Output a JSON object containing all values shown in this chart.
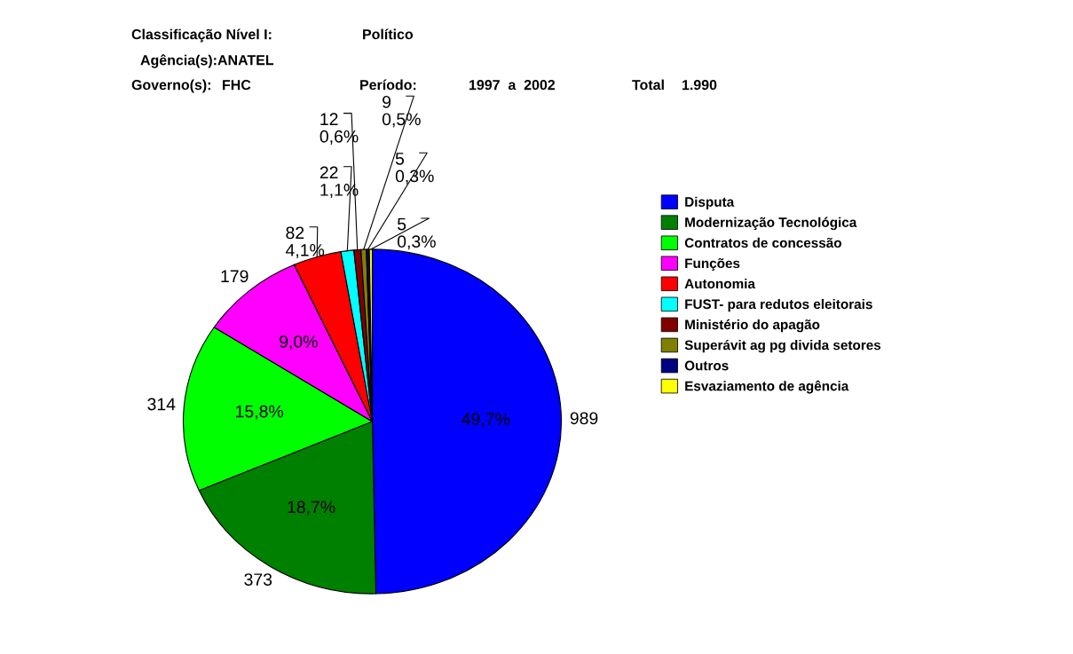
{
  "chart_data": {
    "type": "pie",
    "annotations": [
      "Classificação Nível I:",
      "Político",
      "Agência(s):",
      "ANATEL",
      "Governo(s):",
      "FHC",
      "Período:",
      "1997  a  2002",
      "Total",
      "1.990",
      {
        "text": "49,7%",
        "x": "Disputa"
      },
      {
        "text": "18,7%",
        "x": "Modernização Tecnológica"
      },
      {
        "text": "15,8%",
        "x": "Contratos de concessão"
      },
      {
        "text": "9,0%",
        "x": "Funções"
      },
      {
        "text": "4,1%",
        "x": "Autonomia"
      },
      {
        "text": "1,1%",
        "x": "FUST- para redutos eleitorais"
      },
      {
        "text": "0,6%",
        "x": "Ministério do apagão"
      },
      {
        "text": "0,5%",
        "x": "Superávit ag pg divida setores"
      },
      {
        "text": "0,3%",
        "x": "Outros"
      },
      {
        "text": "0,3%",
        "x": "Esvaziamento de agência"
      }
    ],
    "categories": [
      "Disputa",
      "Modernização Tecnológica",
      "Contratos de concessão",
      "Funções",
      "Autonomia",
      "FUST- para redutos eleitorais",
      "Ministério do apagão",
      "Superávit ag pg divida setores",
      "Outros",
      "Esvaziamento de agência"
    ],
    "values": [
      989,
      373,
      314,
      179,
      82,
      22,
      12,
      9,
      5,
      5
    ],
    "value_labels": [
      "989",
      "373",
      "314",
      "179",
      "82",
      "22",
      "12",
      "9",
      "5",
      "5"
    ],
    "colors": [
      "#0000ff",
      "#008000",
      "#00ff00",
      "#ff00ff",
      "#ff0000",
      "#00ffff",
      "#800000",
      "#808000",
      "#000080",
      "#ffff00"
    ],
    "legend": "right"
  }
}
